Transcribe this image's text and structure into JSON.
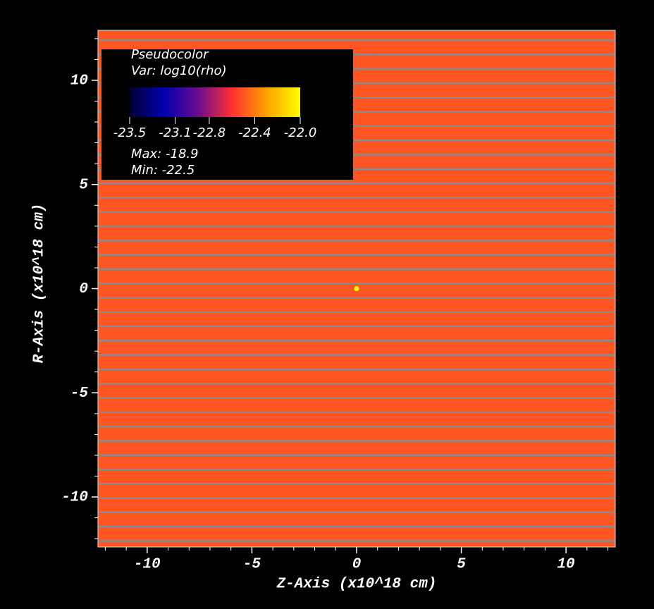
{
  "chart_data": {
    "type": "pseudocolor",
    "xlabel": "Z-Axis (x10^18 cm)",
    "ylabel": "R-Axis (x10^18 cm)",
    "xlim": [
      -12.35,
      12.35
    ],
    "ylim": [
      -12.4,
      12.4
    ],
    "xticks": [
      -10,
      -5,
      0,
      5,
      10
    ],
    "yticks": [
      -10,
      -5,
      0,
      5,
      10
    ],
    "xminorticks": [
      -12,
      -11,
      -9,
      -8,
      -7,
      -6,
      -4,
      -3,
      -2,
      -1,
      1,
      2,
      3,
      4,
      6,
      7,
      8,
      9,
      11,
      12
    ],
    "yminorticks": [
      -12,
      -11,
      -9,
      -8,
      -7,
      -6,
      -4,
      -3,
      -2,
      -1,
      1,
      2,
      3,
      4,
      6,
      7,
      8,
      9,
      11,
      12
    ],
    "fill_color": "#ff5522",
    "mesh_color": "#8a8a8a",
    "points": [
      {
        "x": 0,
        "y": 0,
        "color": "#ffff00"
      }
    ],
    "legend": {
      "title": "Pseudocolor",
      "variable": "Var: log10(rho)",
      "clim": [
        -23.5,
        -22.0
      ],
      "colormap": [
        "#000030",
        "#0000b0",
        "#6a0a90",
        "#ff3030",
        "#ffa000",
        "#ffff00"
      ],
      "ticks": [
        -23.5,
        -23.1,
        -22.8,
        -22.4,
        {
          "value": -22.0,
          "label": "-22.0"
        }
      ],
      "max": "Max: -18.9",
      "min": "Min: -22.5"
    }
  }
}
